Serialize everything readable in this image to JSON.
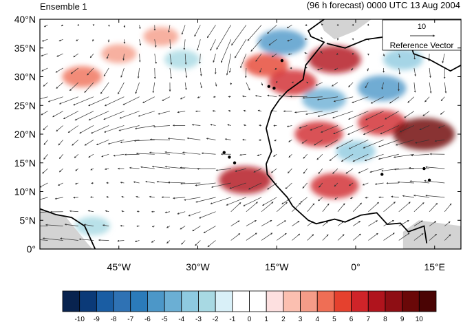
{
  "titles": {
    "left": "Ensemble 1",
    "right": "(96 h forecast) 0000 UTC 13 Aug 2004"
  },
  "map": {
    "lon_range": [
      -60,
      20
    ],
    "lat_range": [
      0,
      40
    ],
    "lat_ticks": [
      {
        "value": 40,
        "label": "40°N"
      },
      {
        "value": 35,
        "label": "35°N"
      },
      {
        "value": 30,
        "label": "30°N"
      },
      {
        "value": 25,
        "label": "25°N"
      },
      {
        "value": 20,
        "label": "20°N"
      },
      {
        "value": 15,
        "label": "15°N"
      },
      {
        "value": 10,
        "label": "10°N"
      },
      {
        "value": 5,
        "label": "5°N"
      },
      {
        "value": 0,
        "label": "0°"
      }
    ],
    "lon_ticks": [
      {
        "value": -45,
        "label": "45°W"
      },
      {
        "value": -30,
        "label": "30°W"
      },
      {
        "value": -15,
        "label": "15°W"
      },
      {
        "value": 0,
        "label": "0°"
      },
      {
        "value": 15,
        "label": "15°E"
      }
    ],
    "colors": {
      "land_mask": "#d3d3d3",
      "coastline": "#000000",
      "vector": "#333333"
    },
    "anomaly_blobs": [
      {
        "lon": -17,
        "lat": 32,
        "value": 5
      },
      {
        "lon": -12,
        "lat": 29,
        "value": 6
      },
      {
        "lon": -4,
        "lat": 33,
        "value": 7
      },
      {
        "lon": -21,
        "lat": 12,
        "value": 7
      },
      {
        "lon": -7,
        "lat": 20,
        "value": 6
      },
      {
        "lon": 5,
        "lat": 22,
        "value": 6
      },
      {
        "lon": 13,
        "lat": 20,
        "value": 9
      },
      {
        "lon": -4,
        "lat": 11,
        "value": 6
      },
      {
        "lon": -52,
        "lat": 30,
        "value": 4
      },
      {
        "lon": -45,
        "lat": 34,
        "value": 3
      },
      {
        "lon": -37,
        "lat": 37,
        "value": 3
      },
      {
        "lon": -14,
        "lat": 36,
        "value": -6
      },
      {
        "lon": -6,
        "lat": 26,
        "value": -5
      },
      {
        "lon": 5,
        "lat": 28,
        "value": -6
      },
      {
        "lon": 9,
        "lat": 33,
        "value": -4
      },
      {
        "lon": -50,
        "lat": 4,
        "value": -3
      },
      {
        "lon": -33,
        "lat": 33,
        "value": -3
      },
      {
        "lon": 0,
        "lat": 17,
        "value": -4
      }
    ]
  },
  "reference_vector": {
    "value": "10",
    "label": "Reference Vector"
  },
  "colorbar": {
    "levels": [
      "-10",
      "-9",
      "-8",
      "-7",
      "-6",
      "-5",
      "-4",
      "-3",
      "-2",
      "-1",
      "0",
      "1",
      "2",
      "3",
      "4",
      "5",
      "6",
      "7",
      "8",
      "9",
      "10"
    ],
    "colors": [
      "#08234f",
      "#0b3a78",
      "#1a5da3",
      "#2f72b4",
      "#2b7bba",
      "#4c97c8",
      "#6bafd4",
      "#8ecae0",
      "#a8d9e3",
      "#d9f0f8",
      "#ffffff",
      "#ffffff",
      "#fde0e0",
      "#fbbfb0",
      "#f59c88",
      "#ef6e55",
      "#e5412e",
      "#cf2429",
      "#b0141d",
      "#8e0e14",
      "#6a0808",
      "#4a0404"
    ]
  }
}
